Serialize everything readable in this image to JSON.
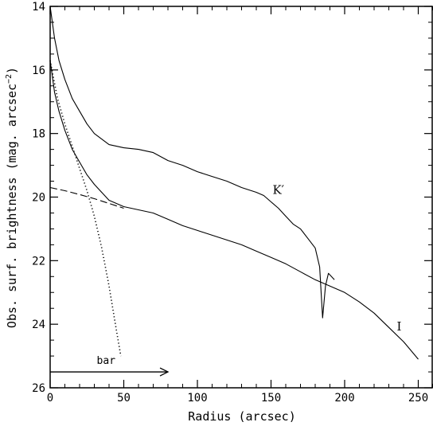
{
  "chart_data": {
    "type": "line",
    "xlabel": "Radius (arcsec)",
    "ylabel": "Obs. surf. brightness (mag. arcsec",
    "ylabel_sup": "−2",
    "ylabel_close": ")",
    "xlim": [
      0,
      260
    ],
    "ylim": [
      26,
      14
    ],
    "y_inverted": true,
    "x_ticks": [
      0,
      50,
      100,
      150,
      200,
      250
    ],
    "x_tick_labels": [
      "0",
      "50",
      "100",
      "150",
      "200",
      "250"
    ],
    "y_ticks": [
      14,
      16,
      18,
      20,
      22,
      24,
      26
    ],
    "y_tick_labels": [
      "14",
      "16",
      "18",
      "20",
      "22",
      "24",
      "26"
    ],
    "grid": false,
    "series": [
      {
        "name": "K′",
        "style": "solid",
        "x": [
          0,
          3,
          6,
          10,
          15,
          20,
          25,
          30,
          40,
          50,
          60,
          70,
          80,
          90,
          100,
          110,
          120,
          130,
          140,
          145,
          150,
          155,
          160,
          165,
          170,
          175,
          180,
          183,
          185,
          187,
          189,
          191,
          193
        ],
        "y": [
          14.0,
          15.0,
          15.7,
          16.3,
          16.9,
          17.3,
          17.7,
          18.0,
          18.35,
          18.45,
          18.5,
          18.6,
          18.85,
          19.0,
          19.2,
          19.35,
          19.5,
          19.7,
          19.85,
          19.95,
          20.15,
          20.35,
          20.6,
          20.85,
          21.0,
          21.3,
          21.6,
          22.2,
          23.8,
          22.8,
          22.4,
          22.5,
          22.6
        ]
      },
      {
        "name": "I",
        "style": "solid",
        "x": [
          0,
          3,
          6,
          10,
          15,
          20,
          25,
          30,
          40,
          50,
          60,
          70,
          80,
          90,
          100,
          110,
          120,
          130,
          140,
          150,
          160,
          170,
          180,
          190,
          200,
          210,
          220,
          230,
          240,
          250
        ],
        "y": [
          15.7,
          16.7,
          17.3,
          17.9,
          18.5,
          18.9,
          19.3,
          19.6,
          20.1,
          20.3,
          20.4,
          20.5,
          20.7,
          20.9,
          21.05,
          21.2,
          21.35,
          21.5,
          21.7,
          21.9,
          22.1,
          22.35,
          22.6,
          22.8,
          23.0,
          23.3,
          23.65,
          24.1,
          24.55,
          25.1
        ]
      },
      {
        "name": "",
        "style": "dashed",
        "x": [
          0,
          10,
          20,
          30,
          40,
          50
        ],
        "y": [
          19.7,
          19.8,
          19.92,
          20.05,
          20.2,
          20.35
        ]
      },
      {
        "name": "",
        "style": "dotted",
        "x": [
          0,
          5,
          10,
          15,
          20,
          25,
          30,
          35,
          40,
          45,
          48
        ],
        "y": [
          15.7,
          16.9,
          17.7,
          18.4,
          19.1,
          19.8,
          20.6,
          21.6,
          22.8,
          24.2,
          25.0
        ]
      }
    ],
    "annotations": [
      {
        "text": "K′",
        "x": 155,
        "y": 19.9
      },
      {
        "text": "I",
        "x": 237,
        "y": 24.2
      },
      {
        "text": "bar",
        "x": 38,
        "y": 25.25,
        "font": "mono"
      }
    ],
    "bar_arrow": {
      "x_start": 0,
      "x_end": 80,
      "y": 25.5
    }
  }
}
